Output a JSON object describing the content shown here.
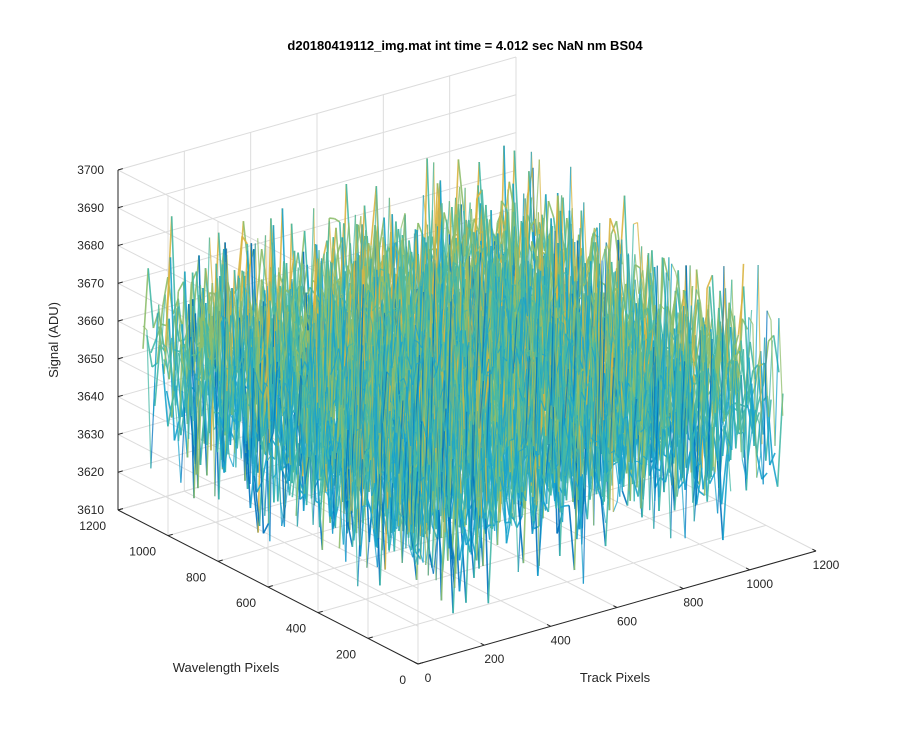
{
  "chart_data": {
    "type": "surface",
    "title": "d20180419112_img.mat int time = 4.012 sec  NaN nm BS04",
    "xlabel": "Track Pixels",
    "ylabel": "Wavelength Pixels",
    "zlabel": "Signal (ADU)",
    "xlim": [
      0,
      1200
    ],
    "ylim": [
      0,
      1200
    ],
    "zlim": [
      3610,
      3700
    ],
    "x_ticks": [
      "0",
      "200",
      "400",
      "600",
      "800",
      "1000",
      "1200"
    ],
    "y_ticks": [
      "0",
      "200",
      "400",
      "600",
      "800",
      "1000",
      "1200"
    ],
    "z_ticks": [
      "3610",
      "3620",
      "3630",
      "3640",
      "3650",
      "3660",
      "3670",
      "3680",
      "3690",
      "3700"
    ],
    "grid": true,
    "surface": {
      "x_range": [
        0,
        1100
      ],
      "y_range": [
        0,
        1100
      ],
      "baseline": 3640,
      "noise_range": [
        3612,
        3695
      ]
    },
    "colormap": [
      "#0072BD",
      "#1AA3CC",
      "#45B8A6",
      "#8DBE6B",
      "#D9B440"
    ]
  }
}
